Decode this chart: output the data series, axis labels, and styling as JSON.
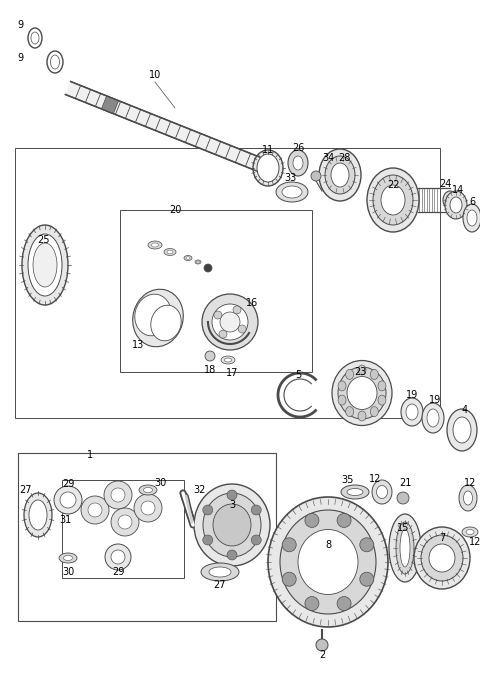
{
  "bg": "#ffffff",
  "lc": "#4a4a4a",
  "figsize": [
    4.8,
    6.93
  ],
  "dpi": 100
}
